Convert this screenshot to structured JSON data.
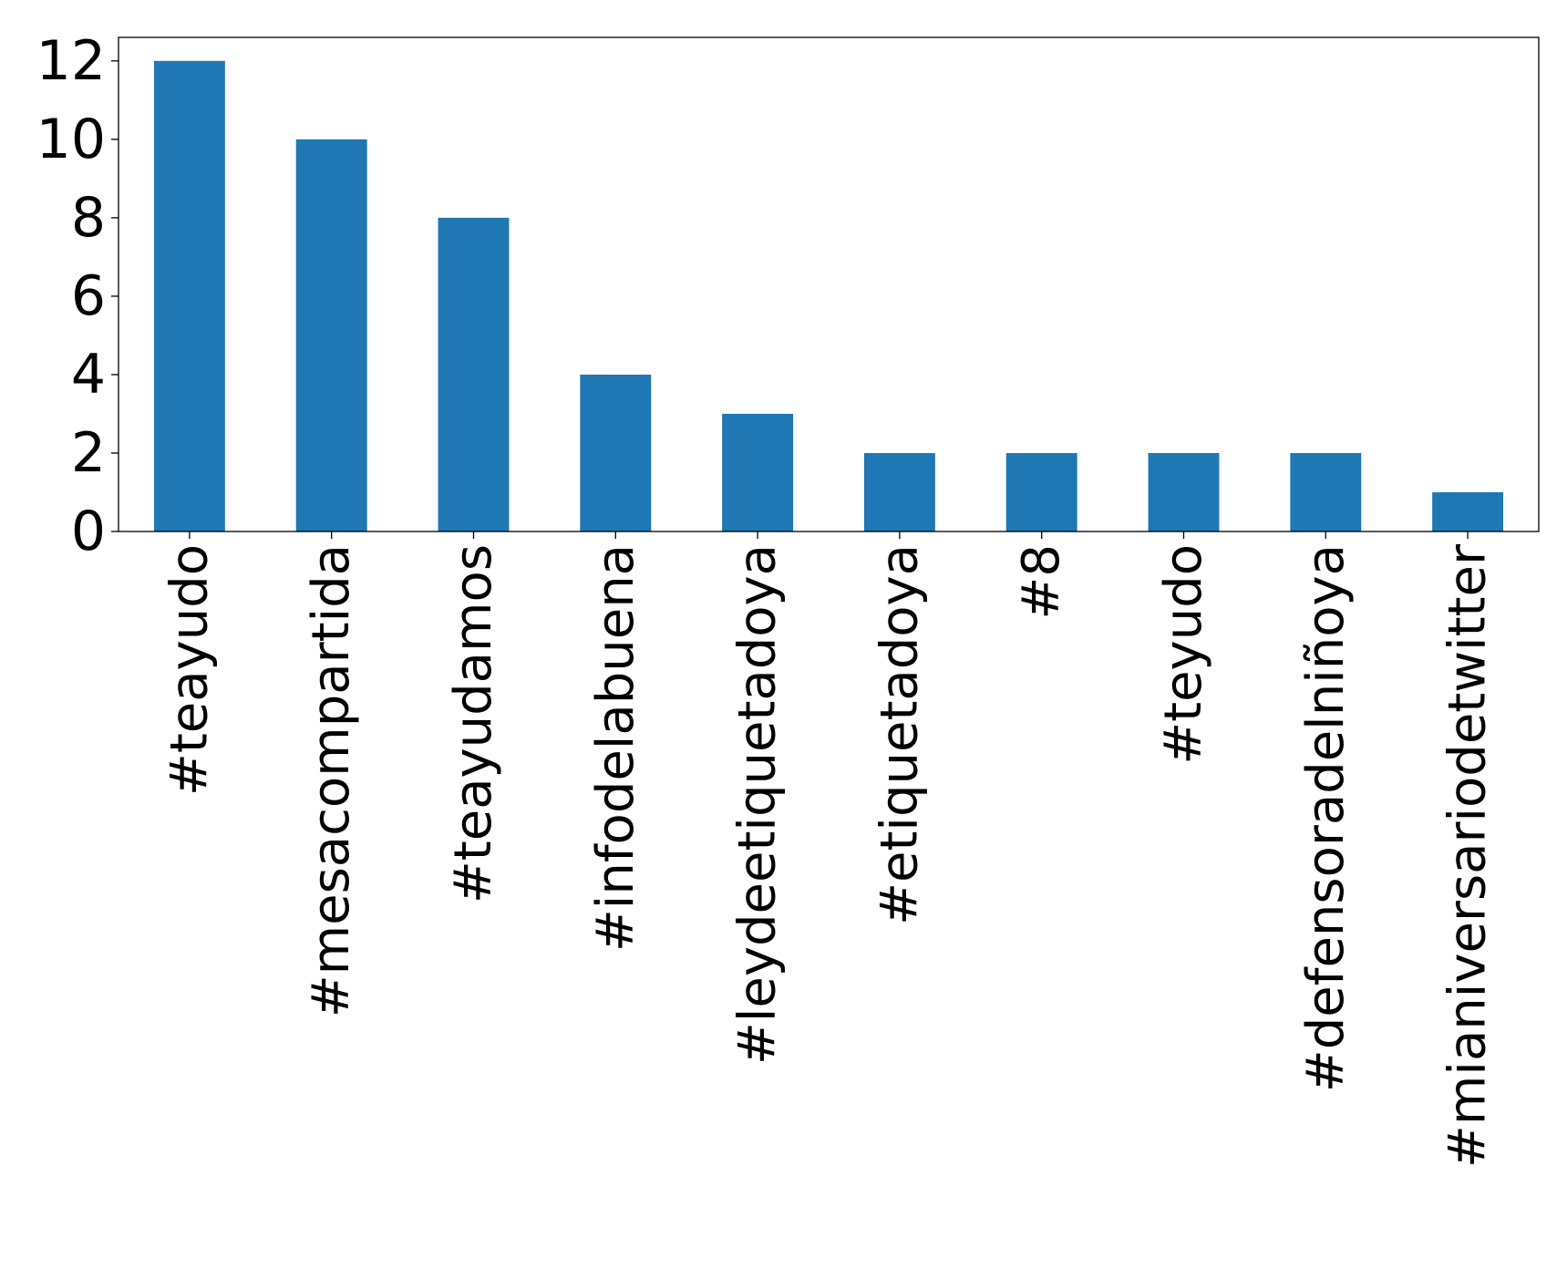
{
  "chart_data": {
    "type": "bar",
    "title": "",
    "xlabel": "",
    "ylabel": "",
    "categories": [
      "#teayudo",
      "#mesacompartida",
      "#teayudamos",
      "#infodelabuena",
      "#leydeetiquetadoya",
      "#etiquetadoya",
      "#8",
      "#teyudo",
      "#defensoradelniñoya",
      "#mianiversariodetwitter"
    ],
    "values": [
      12,
      10,
      8,
      4,
      3,
      2,
      2,
      2,
      2,
      1
    ],
    "ylim": [
      0,
      12.6
    ],
    "yticks": [
      0,
      2,
      4,
      6,
      8,
      10,
      12
    ],
    "grid": false,
    "legend": "none",
    "bar_color": "#1f77b4"
  }
}
